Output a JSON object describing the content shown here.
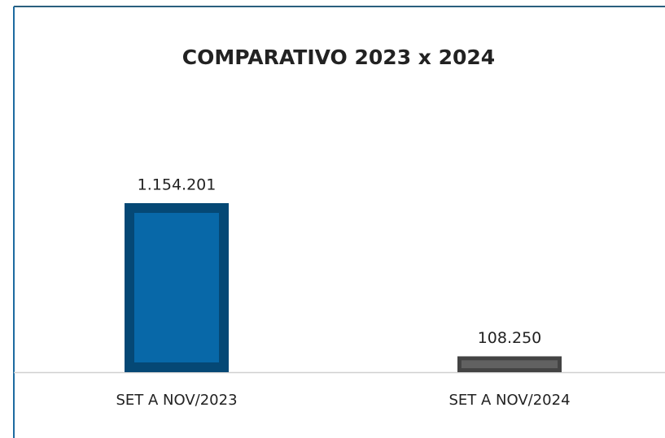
{
  "chart_data": {
    "type": "bar",
    "title": "COMPARATIVO 2023 x 2024",
    "categories": [
      "SET A NOV/2023",
      "SET A NOV/2024"
    ],
    "values": [
      1154201,
      108250
    ],
    "value_labels": [
      "1.154.201",
      "108.250"
    ],
    "colors": [
      "#0868a8",
      "#616161"
    ]
  }
}
